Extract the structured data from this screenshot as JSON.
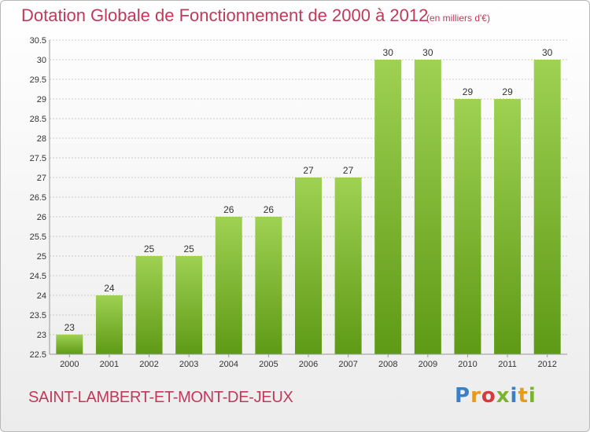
{
  "header": {
    "title": "Dotation Globale de Fonctionnement de 2000 à 2012",
    "subtitle": "(en milliers d'€)"
  },
  "footer": {
    "place_name": "SAINT-LAMBERT-ET-MONT-DE-JEUX",
    "logo_text": "Proxiti",
    "logo_colors": [
      "#3b7fc4",
      "#e89a1a",
      "#d63a3a",
      "#7ab32e",
      "#3b7fc4",
      "#e89a1a",
      "#7ab32e"
    ]
  },
  "chart_data": {
    "type": "bar",
    "title": "Dotation Globale de Fonctionnement de 2000 à 2012",
    "subtitle": "(en milliers d'€)",
    "categories": [
      "2000",
      "2001",
      "2002",
      "2003",
      "2004",
      "2005",
      "2006",
      "2007",
      "2008",
      "2009",
      "2010",
      "2011",
      "2012"
    ],
    "values": [
      23,
      24,
      25,
      25,
      26,
      26,
      27,
      27,
      30,
      30,
      29,
      29,
      30
    ],
    "data_labels": [
      "23",
      "24",
      "25",
      "25",
      "26",
      "26",
      "27",
      "27",
      "30",
      "30",
      "29",
      "29",
      "30"
    ],
    "xlabel": "",
    "ylabel": "",
    "ylim": [
      22.5,
      30.5
    ],
    "yticks": [
      22.5,
      23,
      23.5,
      24,
      24.5,
      25,
      25.5,
      26,
      26.5,
      27,
      27.5,
      28,
      28.5,
      29,
      29.5,
      30,
      30.5
    ],
    "ytick_labels": [
      "22.5",
      "23",
      "23.5",
      "24",
      "24.5",
      "25",
      "25.5",
      "26",
      "26.5",
      "27",
      "27.5",
      "28",
      "28.5",
      "29",
      "29.5",
      "30",
      "30.5"
    ],
    "grid": true,
    "legend": "none",
    "colors": {
      "bar_top": "#9fd152",
      "bar_bottom": "#5e9a16",
      "grid": "#cccccc",
      "axis": "#999999"
    }
  }
}
